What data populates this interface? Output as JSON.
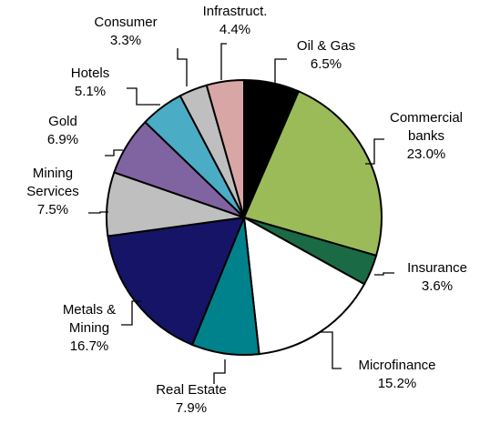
{
  "chart_data": {
    "type": "pie",
    "title": "",
    "start_angle_deg": 0,
    "direction": "clockwise",
    "slices": [
      {
        "label_lines": [
          "Oil & Gas"
        ],
        "value_text": "6.5%",
        "value": 6.5,
        "color": "#000000"
      },
      {
        "label_lines": [
          "Commercial",
          "banks"
        ],
        "value_text": "23.0%",
        "value": 23.0,
        "color": "#9bbb59"
      },
      {
        "label_lines": [
          "Insurance"
        ],
        "value_text": "3.6%",
        "value": 3.6,
        "color": "#1a6b45"
      },
      {
        "label_lines": [
          "Microfinance"
        ],
        "value_text": "15.2%",
        "value": 15.2,
        "color": "#ffffff"
      },
      {
        "label_lines": [
          "Real Estate"
        ],
        "value_text": "7.9%",
        "value": 7.9,
        "color": "#00828c"
      },
      {
        "label_lines": [
          "Metals &",
          "Mining"
        ],
        "value_text": "16.7%",
        "value": 16.7,
        "color": "#161466"
      },
      {
        "label_lines": [
          "Mining",
          "Services"
        ],
        "value_text": "7.5%",
        "value": 7.5,
        "color": "#bfbfbf"
      },
      {
        "label_lines": [
          "Gold"
        ],
        "value_text": "6.9%",
        "value": 6.9,
        "color": "#8064a2"
      },
      {
        "label_lines": [
          "Hotels"
        ],
        "value_text": "5.1%",
        "value": 5.1,
        "color": "#4bacc6"
      },
      {
        "label_lines": [
          "Consumer"
        ],
        "value_text": "3.3%",
        "value": 3.3,
        "color": "#bfbfbf"
      },
      {
        "label_lines": [
          "Infrastruct."
        ],
        "value_text": "4.4%",
        "value": 4.4,
        "color": "#d9a6a6"
      }
    ]
  }
}
